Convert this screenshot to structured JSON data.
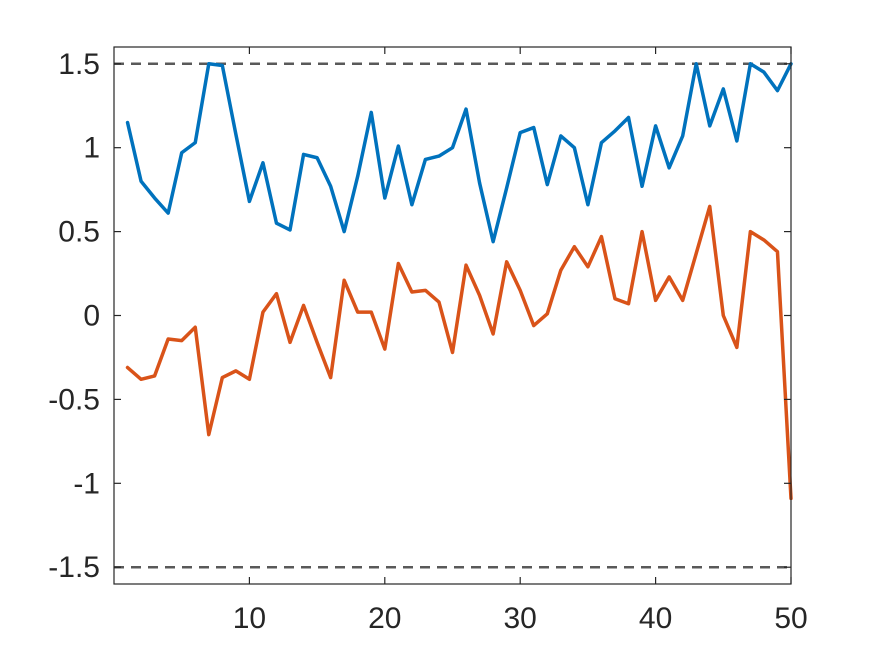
{
  "chart_data": {
    "type": "line",
    "title": "",
    "xlabel": "",
    "ylabel": "",
    "xlim": [
      0,
      50
    ],
    "ylim": [
      -1.6,
      1.6
    ],
    "grid": false,
    "legend": "none",
    "x_ticks": [
      "10",
      "20",
      "30",
      "40",
      "50"
    ],
    "x_tick_values": [
      10,
      20,
      30,
      40,
      50
    ],
    "y_ticks": [
      "1.5",
      "1",
      "0.5",
      "0",
      "-0.5",
      "-1",
      "-1.5"
    ],
    "y_tick_values": [
      1.5,
      1,
      0.5,
      0,
      -0.5,
      -1,
      -1.5
    ],
    "x": [
      1,
      2,
      3,
      4,
      5,
      6,
      7,
      8,
      9,
      10,
      11,
      12,
      13,
      14,
      15,
      16,
      17,
      18,
      19,
      20,
      21,
      22,
      23,
      24,
      25,
      26,
      27,
      28,
      29,
      30,
      31,
      32,
      33,
      34,
      35,
      36,
      37,
      38,
      39,
      40,
      41,
      42,
      43,
      44,
      45,
      46,
      47,
      48,
      49,
      50
    ],
    "series": [
      {
        "color": "#0072BD",
        "values": [
          1.15,
          0.8,
          0.7,
          0.61,
          0.97,
          1.03,
          1.5,
          1.49,
          1.08,
          0.68,
          0.91,
          0.55,
          0.51,
          0.96,
          0.94,
          0.77,
          0.5,
          0.83,
          1.21,
          0.7,
          1.01,
          0.66,
          0.93,
          0.95,
          1.0,
          1.23,
          0.79,
          0.44,
          0.76,
          1.09,
          1.12,
          0.78,
          1.07,
          1.0,
          0.66,
          1.03,
          1.1,
          1.18,
          0.77,
          1.13,
          0.88,
          1.07,
          1.5,
          1.13,
          1.35,
          1.04,
          1.5,
          1.45,
          1.34,
          1.5
        ]
      },
      {
        "color": "#D95319",
        "values": [
          -0.31,
          -0.38,
          -0.36,
          -0.14,
          -0.15,
          -0.07,
          -0.71,
          -0.37,
          -0.33,
          -0.38,
          0.02,
          0.13,
          -0.16,
          0.06,
          -0.16,
          -0.37,
          0.21,
          0.02,
          0.02,
          -0.2,
          0.31,
          0.14,
          0.15,
          0.08,
          -0.22,
          0.3,
          0.12,
          -0.11,
          0.32,
          0.15,
          -0.06,
          0.01,
          0.27,
          0.41,
          0.29,
          0.47,
          0.1,
          0.07,
          0.5,
          0.09,
          0.23,
          0.09,
          0.37,
          0.65,
          0.0,
          -0.19,
          0.5,
          0.45,
          0.38,
          -1.09
        ]
      }
    ],
    "reference_lines": [
      {
        "y": 1.5,
        "style": "dashed",
        "color": "#595959"
      },
      {
        "y": -1.5,
        "style": "dashed",
        "color": "#595959"
      }
    ]
  }
}
